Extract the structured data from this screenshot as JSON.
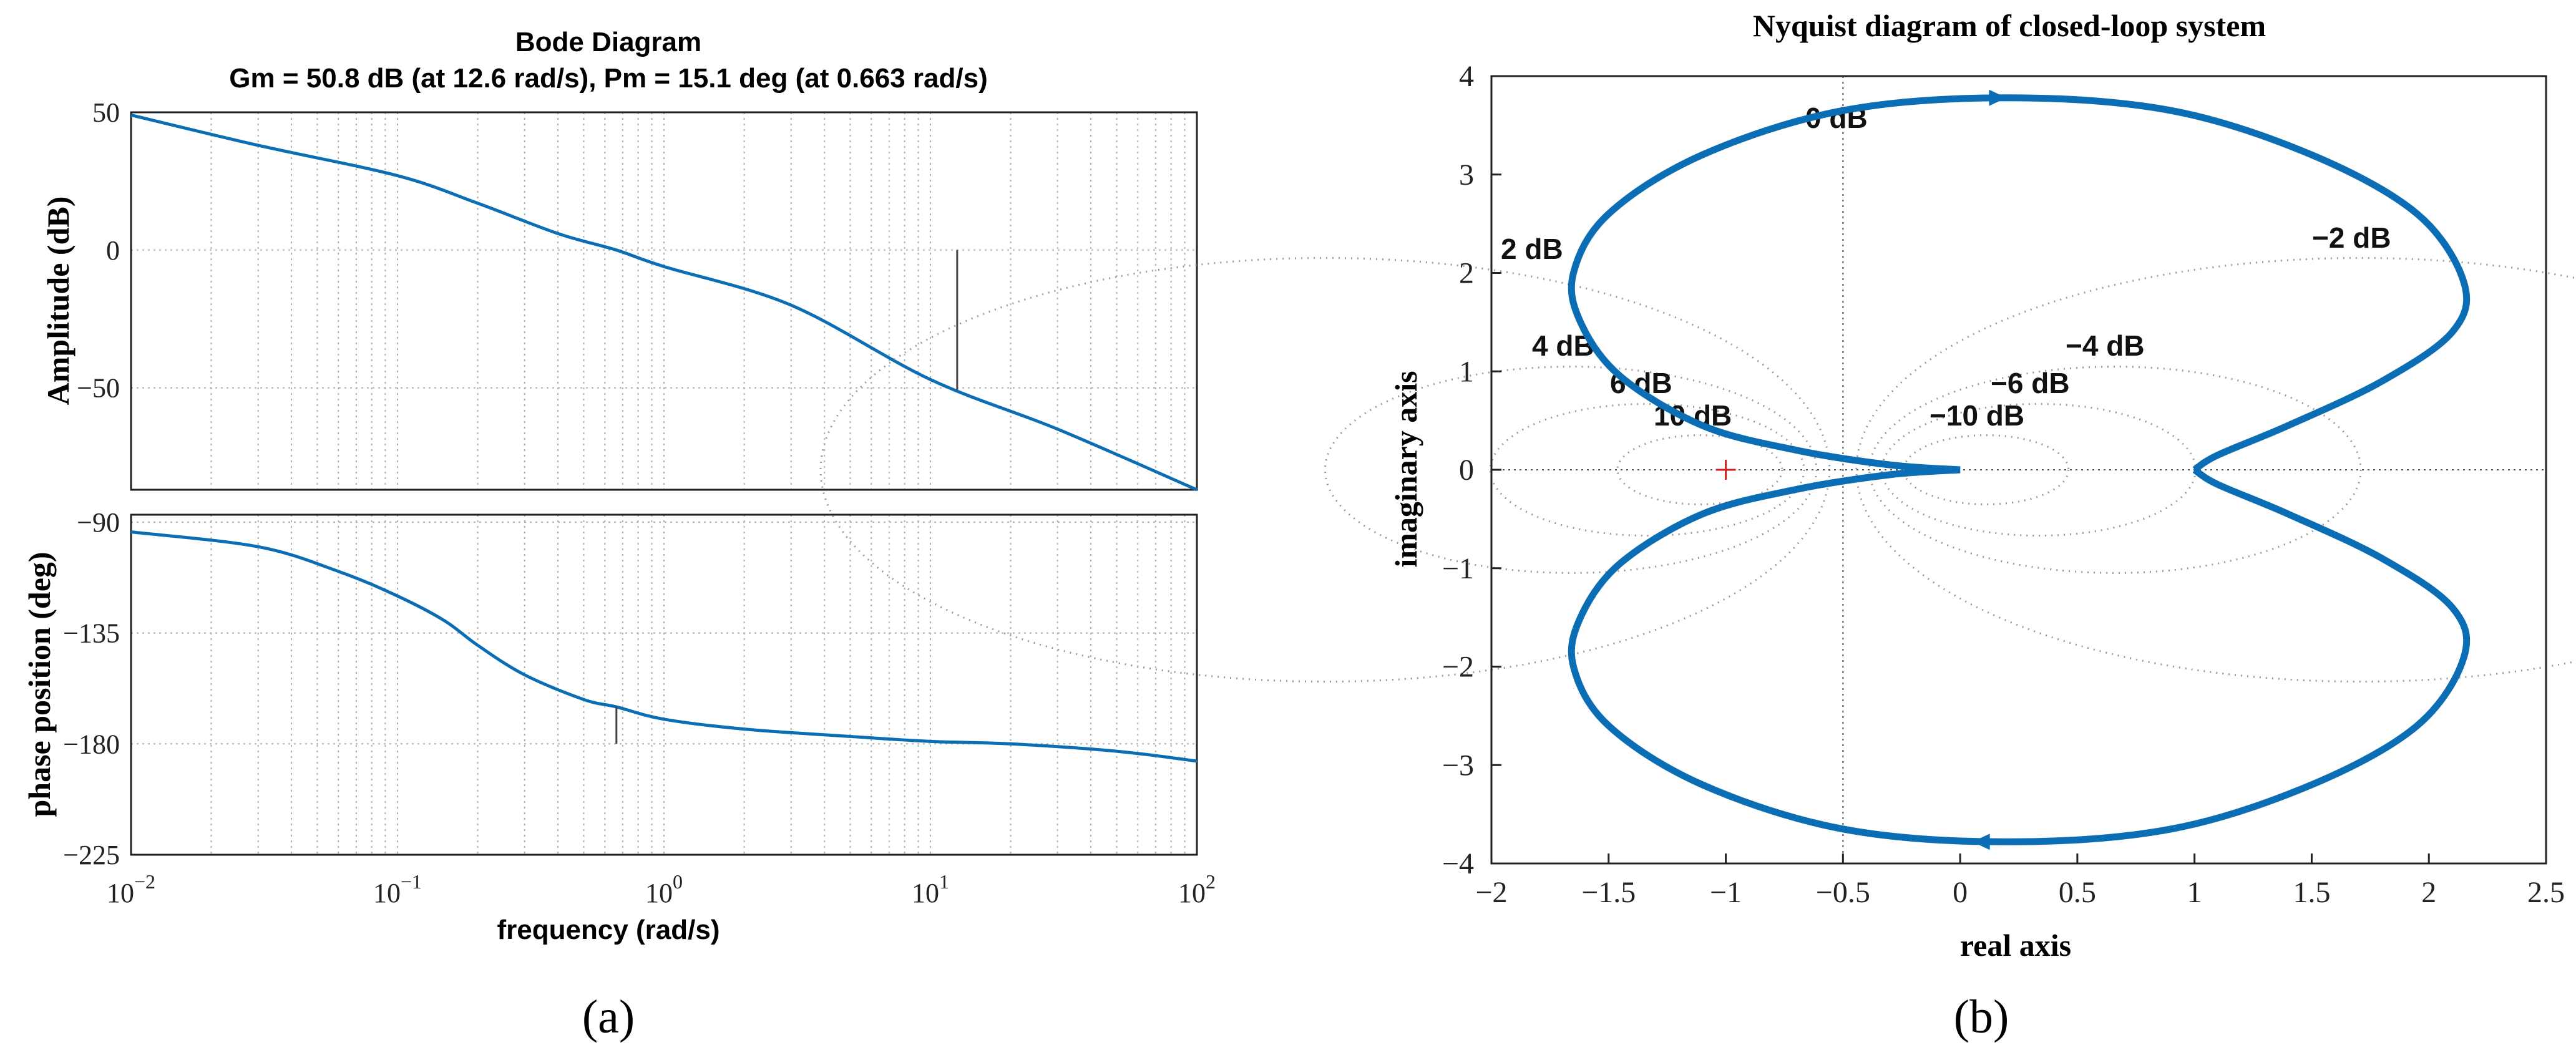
{
  "chart_data": [
    {
      "type": "line",
      "panel_label": "(a)",
      "title": "Bode Diagram",
      "subtitle": "Gm = 50.8 dB (at 12.6 rad/s),  Pm = 15.1 deg (at 0.663 rad/s)",
      "xlabel": "frequency  (rad/s)",
      "xscale": "log",
      "xlim": [
        0.01,
        100
      ],
      "x_ticks": [
        {
          "base": "10",
          "exp": "−2"
        },
        {
          "base": "10",
          "exp": "−1"
        },
        {
          "base": "10",
          "exp": "0"
        },
        {
          "base": "10",
          "exp": "1"
        },
        {
          "base": "10",
          "exp": "2"
        }
      ],
      "gain_margin": {
        "value_db": 50.8,
        "freq": 12.6
      },
      "phase_margin": {
        "value_deg": 15.1,
        "freq": 0.663
      },
      "magnitude": {
        "ylabel": "Amplitude (dB)",
        "ylim": [
          -87,
          50
        ],
        "yticks": [
          "50",
          "0",
          "−50"
        ],
        "ytick_values": [
          50,
          0,
          -50
        ],
        "x": [
          0.01,
          0.03,
          0.1,
          0.2,
          0.4,
          0.663,
          1,
          3,
          10,
          30,
          100
        ],
        "y": [
          49,
          38,
          27,
          17,
          6,
          0,
          -6,
          -20,
          -47,
          -65,
          -87
        ]
      },
      "phase": {
        "ylabel": "phase position (deg)",
        "ylim": [
          -225,
          -87
        ],
        "yticks": [
          "−90",
          "−135",
          "−180",
          "−225"
        ],
        "ytick_values": [
          -90,
          -135,
          -180,
          -225
        ],
        "x": [
          0.01,
          0.03,
          0.06,
          0.1,
          0.15,
          0.2,
          0.3,
          0.5,
          0.663,
          1,
          2,
          5,
          10,
          20,
          50,
          100
        ],
        "y": [
          -94,
          -100,
          -110,
          -120,
          -130,
          -140,
          -152,
          -162,
          -165,
          -170,
          -174,
          -177,
          -179,
          -180,
          -183,
          -187
        ]
      },
      "grid": true
    },
    {
      "type": "line",
      "panel_label": "(b)",
      "title": "Nyquist diagram of closed-loop system",
      "xlabel": "real axis",
      "ylabel": "imaginary axis",
      "xlim": [
        -2,
        2.5
      ],
      "ylim": [
        -4,
        4
      ],
      "x_ticks": [
        "−2",
        "−1.5",
        "−1",
        "−0.5",
        "0",
        "0.5",
        "1",
        "1.5",
        "2",
        "2.5"
      ],
      "x_tick_values": [
        -2,
        -1.5,
        -1,
        -0.5,
        0,
        0.5,
        1,
        1.5,
        2,
        2.5
      ],
      "y_ticks": [
        "4",
        "3",
        "2",
        "1",
        "0",
        "−1",
        "−2",
        "−3",
        "−4"
      ],
      "y_tick_values": [
        4,
        3,
        2,
        1,
        0,
        -1,
        -2,
        -3,
        -4
      ],
      "critical_point": {
        "x": -1,
        "y": 0,
        "marker": "+"
      },
      "contour_labels": [
        "0 dB",
        "2 dB",
        "−2 dB",
        "4 dB",
        "−4 dB",
        "6 dB",
        "−6 dB",
        "10 dB",
        "−10 dB"
      ],
      "contour_gains_db": [
        2,
        -2,
        4,
        -4,
        6,
        -6,
        10,
        -10
      ],
      "series": [
        {
          "name": "upper branch",
          "x": [
            0,
            -0.3,
            -0.7,
            -1.1,
            -1.45,
            -1.62,
            -1.65,
            -1.5,
            -1.1,
            -0.5,
            0.2,
            0.9,
            1.5,
            1.95,
            2.15,
            2.1,
            1.8,
            1.4,
            1.1,
            1
          ],
          "y": [
            0,
            0.05,
            0.2,
            0.45,
            0.95,
            1.5,
            2.0,
            2.6,
            3.2,
            3.65,
            3.78,
            3.65,
            3.2,
            2.6,
            1.9,
            1.4,
            0.9,
            0.45,
            0.15,
            0
          ]
        },
        {
          "name": "lower branch",
          "x": [
            0,
            -0.3,
            -0.7,
            -1.1,
            -1.45,
            -1.62,
            -1.65,
            -1.5,
            -1.1,
            -0.5,
            0.2,
            0.9,
            1.5,
            1.95,
            2.15,
            2.1,
            1.8,
            1.4,
            1.1,
            1
          ],
          "y": [
            0,
            -0.05,
            -0.2,
            -0.45,
            -0.95,
            -1.5,
            -2.0,
            -2.6,
            -3.2,
            -3.65,
            -3.78,
            -3.65,
            -3.2,
            -2.6,
            -1.9,
            -1.4,
            -0.9,
            -0.45,
            -0.15,
            0
          ]
        }
      ],
      "arrows": [
        {
          "x": 0.15,
          "y": 3.78,
          "direction": "right"
        },
        {
          "x": 0.1,
          "y": -3.78,
          "direction": "left"
        }
      ],
      "grid": false
    }
  ]
}
